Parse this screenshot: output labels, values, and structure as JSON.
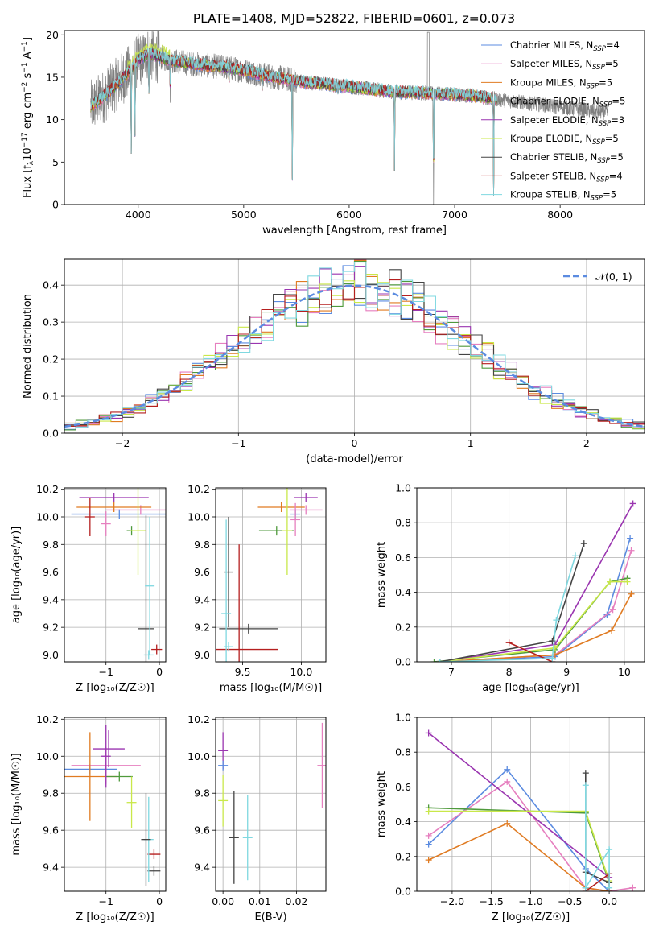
{
  "figure_title": "PLATE=1408, MJD=52822, FIBERID=0601, z=0.073",
  "colors": {
    "Chabrier MILES": "#5b8be0",
    "Salpeter MILES": "#e67fbf",
    "Kroupa MILES": "#e07b22",
    "Chabrier ELODIE": "#4f9a3c",
    "Salpeter ELODIE": "#9a35b0",
    "Kroupa ELODIE": "#c9e84a",
    "Chabrier STELIB": "#444444",
    "Salpeter STELIB": "#b51f1f",
    "Kroupa STELIB": "#7fd8e0",
    "data": "#7f7f7f",
    "gauss": "#5b8be0"
  },
  "chart_data": [
    {
      "id": "spectrum",
      "type": "line",
      "xlabel": "wavelength [Angstrom, rest frame]",
      "ylabel": "Flux [f",
      "ylabel_sub": "λ",
      "ylabel_rest": "10",
      "ylabel_sup1": "−17",
      "ylabel_units": " erg cm",
      "ylabel_sup2": "−2",
      "ylabel_units2": " s",
      "ylabel_sup3": "−1",
      "ylabel_units3": " A",
      "ylabel_sup4": "−1",
      "ylabel_end": "]",
      "xlim": [
        3300,
        8800
      ],
      "ylim": [
        0,
        20.5
      ],
      "xticks": [
        "4000",
        "5000",
        "6000",
        "7000",
        "8000"
      ],
      "yticks": [
        "0",
        "5",
        "10",
        "15",
        "20"
      ],
      "legend_position": "top-right",
      "legend": [
        {
          "name": "Chabrier MILES",
          "n": "4"
        },
        {
          "name": "Salpeter MILES",
          "n": "5"
        },
        {
          "name": "Kroupa MILES",
          "n": "5"
        },
        {
          "name": "Chabrier ELODIE",
          "n": "5"
        },
        {
          "name": "Salpeter ELODIE",
          "n": "3"
        },
        {
          "name": "Kroupa ELODIE",
          "n": "5"
        },
        {
          "name": "Chabrier STELIB",
          "n": "5"
        },
        {
          "name": "Salpeter STELIB",
          "n": "4"
        },
        {
          "name": "Kroupa STELIB",
          "n": "5"
        }
      ],
      "data_x_range": [
        3550,
        8450
      ],
      "model_x_range": [
        3550,
        7400
      ],
      "continuum": [
        [
          3550,
          11.5
        ],
        [
          3700,
          13.0
        ],
        [
          3900,
          15.5
        ],
        [
          4000,
          17.0
        ],
        [
          4100,
          17.8
        ],
        [
          4300,
          17.0
        ],
        [
          4500,
          16.6
        ],
        [
          4800,
          16.2
        ],
        [
          5000,
          15.8
        ],
        [
          5300,
          15.0
        ],
        [
          5600,
          14.4
        ],
        [
          6000,
          13.9
        ],
        [
          6400,
          13.3
        ],
        [
          6800,
          13.1
        ],
        [
          7200,
          12.8
        ],
        [
          7400,
          12.4
        ],
        [
          7800,
          11.8
        ],
        [
          8200,
          11.2
        ],
        [
          8450,
          10.8
        ]
      ],
      "absorption_lines": [
        [
          3934,
          6
        ],
        [
          3969,
          6
        ],
        [
          4101,
          12
        ],
        [
          4304,
          12
        ],
        [
          4861,
          14
        ],
        [
          5175,
          13
        ],
        [
          5461,
          0
        ],
        [
          5894,
          13
        ],
        [
          6430,
          4
        ],
        [
          6563,
          13
        ],
        [
          6800,
          0
        ],
        [
          7370,
          1
        ]
      ]
    },
    {
      "id": "residuals",
      "type": "bar",
      "xlabel": "(data-model)/error",
      "ylabel": "Normed distribution",
      "xlim": [
        -2.5,
        2.5
      ],
      "ylim": [
        0,
        0.47
      ],
      "xticks": [
        "−2",
        "−1",
        "0",
        "1",
        "2"
      ],
      "yticks": [
        "0.0",
        "0.1",
        "0.2",
        "0.3",
        "0.4"
      ],
      "legend_position": "top-right",
      "legend": "𝒩(0, 1)",
      "bin_width": 0.1
    },
    {
      "id": "age_vs_Z",
      "type": "scatter",
      "xlabel": "Z [log₁₀(Z/Z☉)]",
      "ylabel": "age  [log₁₀(age/yr)]",
      "xlim": [
        -1.78,
        0.12
      ],
      "ylim": [
        8.95,
        10.21
      ],
      "xticks": [
        "−1",
        "0"
      ],
      "yticks": [
        "9.0",
        "9.2",
        "9.4",
        "9.6",
        "9.8",
        "10.0",
        "10.2"
      ],
      "points": [
        {
          "s": "Chabrier MILES",
          "x": -0.75,
          "y": 10.02,
          "xerr": 0.9,
          "yerr": 0.0
        },
        {
          "s": "Salpeter MILES",
          "x": -0.35,
          "y": 10.05,
          "xerr": 0.65,
          "yerr": 0.0
        },
        {
          "s": "Kroupa MILES",
          "x": -0.85,
          "y": 10.07,
          "xerr": 0.7,
          "yerr": 0.0
        },
        {
          "s": "Chabrier ELODIE",
          "x": -0.52,
          "y": 9.9,
          "xerr": 0.0,
          "yerr": 0.0
        },
        {
          "s": "Salpeter ELODIE",
          "x": -0.85,
          "y": 10.14,
          "xerr": 0.65,
          "yerr": 0.0
        },
        {
          "s": "Kroupa ELODIE",
          "x": -0.4,
          "y": 9.9,
          "xerr": 0.14,
          "yerr": 0.32
        },
        {
          "s": "Chabrier STELIB",
          "x": -0.25,
          "y": 9.19,
          "xerr": 0.15,
          "yerr": 0.82
        },
        {
          "s": "Salpeter STELIB",
          "x": -0.05,
          "y": 9.04,
          "xerr": 0.1,
          "yerr": 0.0
        },
        {
          "s": "Kroupa STELIB",
          "x": -0.2,
          "y": 9.0,
          "xerr": 0.0,
          "yerr": 0.0
        },
        {
          "s": "Salpeter MILES",
          "x": -1.0,
          "y": 9.95,
          "xerr": 0.0,
          "yerr": 0.09
        },
        {
          "s": "Salpeter STELIB",
          "x": -1.3,
          "y": 10.0,
          "xerr": 0.0,
          "yerr": 0.14
        },
        {
          "s": "Kroupa STELIB",
          "x": -0.18,
          "y": 9.5,
          "xerr": 0.0,
          "yerr": 0.5
        }
      ]
    },
    {
      "id": "age_vs_mass",
      "type": "scatter",
      "xlabel": "mass [log₁₀(M/M☉)]",
      "ylabel": "",
      "xlim": [
        9.27,
        10.21
      ],
      "ylim": [
        8.95,
        10.21
      ],
      "xticks": [
        "9.5",
        "10.0"
      ],
      "yticks": [
        "9.0",
        "9.2",
        "9.4",
        "9.6",
        "9.8",
        "10.0",
        "10.2"
      ],
      "points": [
        {
          "s": "Chabrier MILES",
          "x": 9.95,
          "y": 10.02,
          "xerr": 0.0,
          "yerr": 0.0
        },
        {
          "s": "Salpeter MILES",
          "x": 10.04,
          "y": 10.05,
          "xerr": 0.14,
          "yerr": 0.0
        },
        {
          "s": "Kroupa MILES",
          "x": 9.83,
          "y": 10.07,
          "xerr": 0.2,
          "yerr": 0.0
        },
        {
          "s": "Chabrier ELODIE",
          "x": 9.79,
          "y": 9.9,
          "xerr": 0.15,
          "yerr": 0.0
        },
        {
          "s": "Salpeter ELODIE",
          "x": 10.04,
          "y": 10.14,
          "xerr": 0.1,
          "yerr": 0.0
        },
        {
          "s": "Kroupa ELODIE",
          "x": 9.88,
          "y": 9.9,
          "xerr": 0.0,
          "yerr": 0.32
        },
        {
          "s": "Chabrier STELIB",
          "x": 9.55,
          "y": 9.19,
          "xerr": 0.25,
          "yerr": 0.0
        },
        {
          "s": "Salpeter STELIB",
          "x": 9.47,
          "y": 9.04,
          "xerr": 0.33,
          "yerr": 0.76
        },
        {
          "s": "Kroupa STELIB",
          "x": 9.38,
          "y": 9.06,
          "xerr": 0.0,
          "yerr": 0.0
        },
        {
          "s": "Chabrier STELIB",
          "x": 9.38,
          "y": 9.6,
          "xerr": 0.0,
          "yerr": 0.4
        },
        {
          "s": "Kroupa STELIB",
          "x": 9.36,
          "y": 9.3,
          "xerr": 0.0,
          "yerr": 0.68
        },
        {
          "s": "Salpeter MILES",
          "x": 9.95,
          "y": 9.98,
          "xerr": 0.0,
          "yerr": 0.12
        }
      ]
    },
    {
      "id": "massweight_vs_age",
      "type": "line",
      "xlabel": "age  [log₁₀(age/yr)]",
      "ylabel": "mass weight",
      "xlim": [
        6.4,
        10.35
      ],
      "ylim": [
        0,
        1.0
      ],
      "xticks": [
        "7",
        "8",
        "9",
        "10"
      ],
      "yticks": [
        "0.0",
        "0.2",
        "0.4",
        "0.6",
        "0.8",
        "1.0"
      ],
      "series": [
        {
          "s": "Chabrier MILES",
          "x": [
            6.8,
            8.8,
            9.7,
            10.1
          ],
          "y": [
            0.0,
            0.03,
            0.27,
            0.71
          ]
        },
        {
          "s": "Salpeter MILES",
          "x": [
            6.8,
            8.8,
            9.8,
            10.12
          ],
          "y": [
            0.0,
            0.04,
            0.3,
            0.64
          ]
        },
        {
          "s": "Kroupa MILES",
          "x": [
            6.8,
            8.8,
            9.78,
            10.12
          ],
          "y": [
            0.0,
            0.04,
            0.18,
            0.39
          ]
        },
        {
          "s": "Chabrier ELODIE",
          "x": [
            6.7,
            8.8,
            9.75,
            10.05
          ],
          "y": [
            0.0,
            0.07,
            0.46,
            0.48
          ]
        },
        {
          "s": "Salpeter ELODIE",
          "x": [
            6.8,
            8.8,
            10.15
          ],
          "y": [
            0.0,
            0.1,
            0.91
          ]
        },
        {
          "s": "Kroupa ELODIE",
          "x": [
            6.8,
            8.8,
            9.75,
            10.05
          ],
          "y": [
            0.0,
            0.08,
            0.46,
            0.46
          ]
        },
        {
          "s": "Chabrier STELIB",
          "x": [
            6.8,
            8.75,
            9.3
          ],
          "y": [
            0.0,
            0.12,
            0.68
          ]
        },
        {
          "s": "Salpeter STELIB",
          "x": [
            8.0,
            8.75
          ],
          "y": [
            0.11,
            0.0
          ]
        },
        {
          "s": "Kroupa STELIB",
          "x": [
            6.8,
            8.75,
            8.82,
            9.15
          ],
          "y": [
            0.0,
            0.02,
            0.24,
            0.61
          ]
        }
      ]
    },
    {
      "id": "mass_vs_Z",
      "type": "scatter",
      "xlabel": "Z [log₁₀(Z/Z☉)]",
      "ylabel": "mass [log₁₀(M/M☉)]",
      "xlim": [
        -1.78,
        0.12
      ],
      "ylim": [
        9.27,
        10.21
      ],
      "xticks": [
        "−1",
        "0"
      ],
      "yticks": [
        "9.4",
        "9.6",
        "9.8",
        "10.0",
        "10.2"
      ],
      "points": [
        {
          "s": "Chabrier MILES",
          "x": -1.3,
          "y": 9.93,
          "xerr": 0.5,
          "yerr": 0.0
        },
        {
          "s": "Salpeter MILES",
          "x": -1.0,
          "y": 9.95,
          "xerr": 0.65,
          "yerr": 0.1
        },
        {
          "s": "Kroupa MILES",
          "x": -1.3,
          "y": 9.89,
          "xerr": 0.5,
          "yerr": 0.24
        },
        {
          "s": "Chabrier ELODIE",
          "x": -0.75,
          "y": 9.89,
          "xerr": 0.25,
          "yerr": 0.0
        },
        {
          "s": "Salpeter ELODIE",
          "x": -0.95,
          "y": 10.04,
          "xerr": 0.3,
          "yerr": 0.1
        },
        {
          "s": "Kroupa ELODIE",
          "x": -0.52,
          "y": 9.75,
          "xerr": 0.0,
          "yerr": 0.14
        },
        {
          "s": "Chabrier STELIB",
          "x": -0.1,
          "y": 9.38,
          "xerr": 0.12,
          "yerr": 0.0
        },
        {
          "s": "Salpeter STELIB",
          "x": -0.1,
          "y": 9.47,
          "xerr": 0.12,
          "yerr": 0.0
        },
        {
          "s": "Kroupa STELIB",
          "x": -0.2,
          "y": 9.55,
          "xerr": 0.0,
          "yerr": 0.23
        },
        {
          "s": "Chabrier STELIB",
          "x": -0.25,
          "y": 9.55,
          "xerr": 0.0,
          "yerr": 0.25
        },
        {
          "s": "Salpeter ELODIE",
          "x": -1.0,
          "y": 10.0,
          "xerr": 0.0,
          "yerr": 0.17
        }
      ]
    },
    {
      "id": "mass_vs_ebv",
      "type": "scatter",
      "xlabel": "E(B-V)",
      "ylabel": "",
      "xlim": [
        -0.002,
        0.028
      ],
      "ylim": [
        9.27,
        10.21
      ],
      "xticks": [
        "0.00",
        "0.01",
        "0.02"
      ],
      "yticks": [
        "9.4",
        "9.6",
        "9.8",
        "10.0",
        "10.2"
      ],
      "points": [
        {
          "s": "Salpeter ELODIE",
          "x": 0.0,
          "y": 10.03,
          "xerr": 0.0,
          "yerr": 0.1
        },
        {
          "s": "Kroupa ELODIE",
          "x": 0.0,
          "y": 9.76,
          "xerr": 0.0,
          "yerr": 0.14
        },
        {
          "s": "Chabrier STELIB",
          "x": 0.003,
          "y": 9.56,
          "xerr": 0.0,
          "yerr": 0.25
        },
        {
          "s": "Kroupa STELIB",
          "x": 0.0067,
          "y": 9.56,
          "xerr": 0.0,
          "yerr": 0.23
        },
        {
          "s": "Salpeter MILES",
          "x": 0.027,
          "y": 9.95,
          "xerr": 0.0,
          "yerr": 0.23
        },
        {
          "s": "Chabrier MILES",
          "x": 0.0,
          "y": 9.95,
          "xerr": 0.0,
          "yerr": 0.0
        }
      ]
    },
    {
      "id": "massweight_vs_Z",
      "type": "line",
      "xlabel": "Z [log₁₀(Z/Z☉)]",
      "ylabel": "mass weight",
      "xlim": [
        -2.45,
        0.45
      ],
      "ylim": [
        0,
        1.0
      ],
      "xticks": [
        "−2.0",
        "−1.5",
        "−1.0",
        "−0.5",
        "0.0"
      ],
      "yticks": [
        "0.0",
        "0.2",
        "0.4",
        "0.6",
        "0.8",
        "1.0"
      ],
      "series": [
        {
          "s": "Chabrier MILES",
          "x": [
            -2.3,
            -1.3,
            -0.3,
            0.0
          ],
          "y": [
            0.27,
            0.7,
            0.13,
            0.0
          ]
        },
        {
          "s": "Salpeter MILES",
          "x": [
            -2.3,
            -1.3,
            -0.3,
            0.0,
            0.3
          ],
          "y": [
            0.32,
            0.63,
            0.02,
            0.0,
            0.02
          ]
        },
        {
          "s": "Kroupa MILES",
          "x": [
            -2.3,
            -1.3,
            -0.3,
            0.0
          ],
          "y": [
            0.18,
            0.39,
            0.02,
            0.0
          ]
        },
        {
          "s": "Chabrier ELODIE",
          "x": [
            -2.3,
            -0.3,
            0.0
          ],
          "y": [
            0.48,
            0.45,
            0.05
          ]
        },
        {
          "s": "Salpeter ELODIE",
          "x": [
            -2.3,
            0.0
          ],
          "y": [
            0.91,
            0.08
          ]
        },
        {
          "s": "Kroupa ELODIE",
          "x": [
            -2.3,
            -0.3,
            0.0
          ],
          "y": [
            0.46,
            0.46,
            0.06
          ]
        },
        {
          "s": "Chabrier STELIB",
          "x": [
            -0.3,
            -0.3,
            0.0,
            0.0
          ],
          "y": [
            0.68,
            0.11,
            0.05,
            0.1
          ]
        },
        {
          "s": "Salpeter STELIB",
          "x": [
            -0.3,
            0.0,
            0.0
          ],
          "y": [
            0.0,
            0.1,
            0.0
          ]
        },
        {
          "s": "Kroupa STELIB",
          "x": [
            -0.3,
            -0.3,
            0.0,
            0.0
          ],
          "y": [
            0.61,
            0.02,
            0.24,
            0.02
          ]
        }
      ]
    }
  ]
}
